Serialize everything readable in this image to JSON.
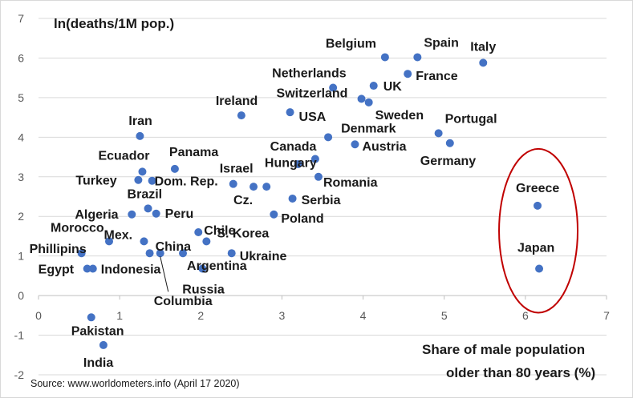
{
  "chart_data": {
    "type": "scatter",
    "title": "",
    "ylabel": "ln(deaths/1M pop.)",
    "xlabel": "Share of male population older than 80 years (%)",
    "xlim": [
      0,
      7
    ],
    "ylim": [
      -2,
      7
    ],
    "xticks": [
      "0",
      "1",
      "2",
      "3",
      "4",
      "5",
      "6",
      "7"
    ],
    "yticks": [
      "-2",
      "-1",
      "0",
      "1",
      "2",
      "3",
      "4",
      "5",
      "6",
      "7"
    ],
    "grid": "horizontal",
    "source": "Source: www.worldometers.info (April 17 2020)",
    "xlabel_lines": [
      "Share of male population",
      "older than 80 years (%)"
    ],
    "highlight": {
      "label": "ellipse",
      "color": "#c00000",
      "countries": [
        "Greece",
        "Japan"
      ]
    },
    "points": [
      {
        "name": "Belgium",
        "x": 4.27,
        "y": 6.02
      },
      {
        "name": "Spain",
        "x": 4.67,
        "y": 6.02
      },
      {
        "name": "Italy",
        "x": 5.48,
        "y": 5.88
      },
      {
        "name": "France",
        "x": 4.55,
        "y": 5.6
      },
      {
        "name": "UK",
        "x": 4.13,
        "y": 5.3
      },
      {
        "name": "Netherlands",
        "x": 3.63,
        "y": 5.25
      },
      {
        "name": "Switzerland",
        "x": 3.98,
        "y": 4.97
      },
      {
        "name": "Sweden",
        "x": 4.07,
        "y": 4.88
      },
      {
        "name": "Ireland",
        "x": 2.5,
        "y": 4.55
      },
      {
        "name": "USA",
        "x": 3.1,
        "y": 4.63
      },
      {
        "name": "Iran",
        "x": 1.25,
        "y": 4.03
      },
      {
        "name": "Denmark",
        "x": 3.57,
        "y": 4.0
      },
      {
        "name": "Portugal",
        "x": 4.93,
        "y": 4.1
      },
      {
        "name": "Austria",
        "x": 3.9,
        "y": 3.82
      },
      {
        "name": "Germany",
        "x": 5.07,
        "y": 3.85
      },
      {
        "name": "Canada",
        "x": 3.2,
        "y": 3.32
      },
      {
        "name": "Ecuador",
        "x": 1.28,
        "y": 3.13
      },
      {
        "name": "Panama",
        "x": 1.68,
        "y": 3.2
      },
      {
        "name": "Turkey",
        "x": 1.23,
        "y": 2.92
      },
      {
        "name": "Dom. Rep.",
        "x": 1.4,
        "y": 2.9
      },
      {
        "name": "Israel",
        "x": 2.4,
        "y": 2.82
      },
      {
        "name": "Hungary",
        "x": 3.41,
        "y": 3.45
      },
      {
        "name": "Romania",
        "x": 3.45,
        "y": 3.0
      },
      {
        "name": "Cz.",
        "x": 2.65,
        "y": 2.75
      },
      {
        "name": "Cz.",
        "x": 2.81,
        "y": 2.75
      },
      {
        "name": "Serbia",
        "x": 3.13,
        "y": 2.45
      },
      {
        "name": "Brazil",
        "x": 1.35,
        "y": 2.2
      },
      {
        "name": "Peru",
        "x": 1.45,
        "y": 2.07
      },
      {
        "name": "Algeria",
        "x": 1.15,
        "y": 2.05
      },
      {
        "name": "Poland",
        "x": 2.9,
        "y": 2.05
      },
      {
        "name": "Chile",
        "x": 1.97,
        "y": 1.6
      },
      {
        "name": "Mex.",
        "x": 1.3,
        "y": 1.37
      },
      {
        "name": "Morocco",
        "x": 0.87,
        "y": 1.37
      },
      {
        "name": "S. Korea",
        "x": 2.07,
        "y": 1.37
      },
      {
        "name": "Phillipins",
        "x": 0.53,
        "y": 1.07
      },
      {
        "name": "China",
        "x": 1.37,
        "y": 1.07
      },
      {
        "name": "Columbia",
        "x": 1.5,
        "y": 1.07
      },
      {
        "name": "Argentina",
        "x": 1.78,
        "y": 1.07
      },
      {
        "name": "Ukraine",
        "x": 2.38,
        "y": 1.07
      },
      {
        "name": "Egypt",
        "x": 0.6,
        "y": 0.68
      },
      {
        "name": "Indonesia",
        "x": 0.67,
        "y": 0.68
      },
      {
        "name": "Russia",
        "x": 2.02,
        "y": 0.68
      },
      {
        "name": "Pakistan",
        "x": 0.65,
        "y": -0.55
      },
      {
        "name": "India",
        "x": 0.8,
        "y": -1.25
      },
      {
        "name": "Greece",
        "x": 6.15,
        "y": 2.27
      },
      {
        "name": "Japan",
        "x": 6.17,
        "y": 0.68
      }
    ]
  }
}
